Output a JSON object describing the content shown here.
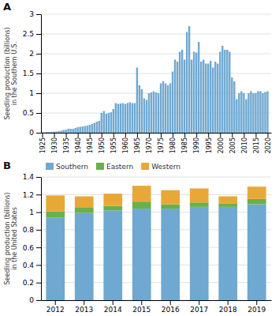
{
  "chart_data": [
    {
      "type": "bar",
      "title": "A",
      "ylabel": "Seedling production (billions)\nin the Southern U.S.",
      "x": [
        1925,
        1926,
        1927,
        1928,
        1929,
        1930,
        1931,
        1932,
        1933,
        1934,
        1935,
        1936,
        1937,
        1938,
        1939,
        1940,
        1941,
        1942,
        1943,
        1944,
        1945,
        1946,
        1947,
        1948,
        1949,
        1950,
        1951,
        1952,
        1953,
        1954,
        1955,
        1956,
        1957,
        1958,
        1959,
        1960,
        1961,
        1962,
        1963,
        1964,
        1965,
        1966,
        1967,
        1968,
        1969,
        1970,
        1971,
        1972,
        1973,
        1974,
        1975,
        1976,
        1977,
        1978,
        1979,
        1980,
        1981,
        1982,
        1983,
        1984,
        1985,
        1986,
        1987,
        1988,
        1989,
        1990,
        1991,
        1992,
        1993,
        1994,
        1995,
        1996,
        1997,
        1998,
        1999,
        2000,
        2001,
        2002,
        2003,
        2004,
        2005,
        2006,
        2007,
        2008,
        2009,
        2010,
        2011,
        2012,
        2013,
        2014,
        2015,
        2016,
        2017,
        2018,
        2019,
        2020
      ],
      "values": [
        0.01,
        0.01,
        0.02,
        0.02,
        0.02,
        0.03,
        0.03,
        0.04,
        0.05,
        0.07,
        0.08,
        0.1,
        0.1,
        0.1,
        0.12,
        0.14,
        0.15,
        0.16,
        0.17,
        0.18,
        0.2,
        0.22,
        0.25,
        0.28,
        0.3,
        0.5,
        0.55,
        0.48,
        0.5,
        0.52,
        0.6,
        0.75,
        0.73,
        0.74,
        0.75,
        0.73,
        0.75,
        0.77,
        0.75,
        0.75,
        1.65,
        1.2,
        1.1,
        0.87,
        0.83,
        1.0,
        1.02,
        1.05,
        1.02,
        1.0,
        1.25,
        1.3,
        1.25,
        1.2,
        1.25,
        1.55,
        1.85,
        1.8,
        2.05,
        2.1,
        1.85,
        2.55,
        2.7,
        1.85,
        2.05,
        2.03,
        2.3,
        1.8,
        1.85,
        1.75,
        1.75,
        1.82,
        1.65,
        1.8,
        1.75,
        2.05,
        2.2,
        2.1,
        2.1,
        2.05,
        1.4,
        1.3,
        0.85,
        1.0,
        1.05,
        1.0,
        0.85,
        1.0,
        1.05,
        1.0,
        1.0,
        1.05,
        1.05,
        1.0,
        1.03,
        1.05
      ],
      "color": "#6fa8d0",
      "xlim": [
        1924.5,
        2021.5
      ],
      "xticks": [
        1925,
        1930,
        1935,
        1940,
        1945,
        1950,
        1955,
        1960,
        1965,
        1970,
        1975,
        1980,
        1985,
        1990,
        1995,
        2000,
        2005,
        2010,
        2015,
        2020
      ],
      "ylim": [
        0,
        3
      ],
      "yticks": [
        0,
        0.5,
        1,
        1.5,
        2,
        2.5,
        3
      ],
      "grid": true
    },
    {
      "type": "bar",
      "title": "B",
      "ylabel": "Seedling production (billions)\nin the United States",
      "categories": [
        "2012",
        "2013",
        "2014",
        "2015",
        "2016",
        "2017",
        "2018",
        "2019"
      ],
      "series": [
        {
          "name": "Southern",
          "color": "#6fa8d0",
          "values": [
            0.94,
            0.99,
            1.02,
            1.04,
            1.04,
            1.06,
            1.06,
            1.09
          ]
        },
        {
          "name": "Eastern",
          "color": "#6ab04c",
          "values": [
            0.07,
            0.06,
            0.05,
            0.08,
            0.05,
            0.05,
            0.04,
            0.06
          ]
        },
        {
          "name": "Western",
          "color": "#e8a838",
          "values": [
            0.18,
            0.13,
            0.14,
            0.18,
            0.16,
            0.16,
            0.08,
            0.14
          ]
        }
      ],
      "stacked": true,
      "ylim": [
        0,
        1.4
      ],
      "yticks": [
        0,
        0.2,
        0.4,
        0.6,
        0.8,
        1,
        1.2,
        1.4
      ],
      "grid": true,
      "legend": "upper left"
    }
  ]
}
